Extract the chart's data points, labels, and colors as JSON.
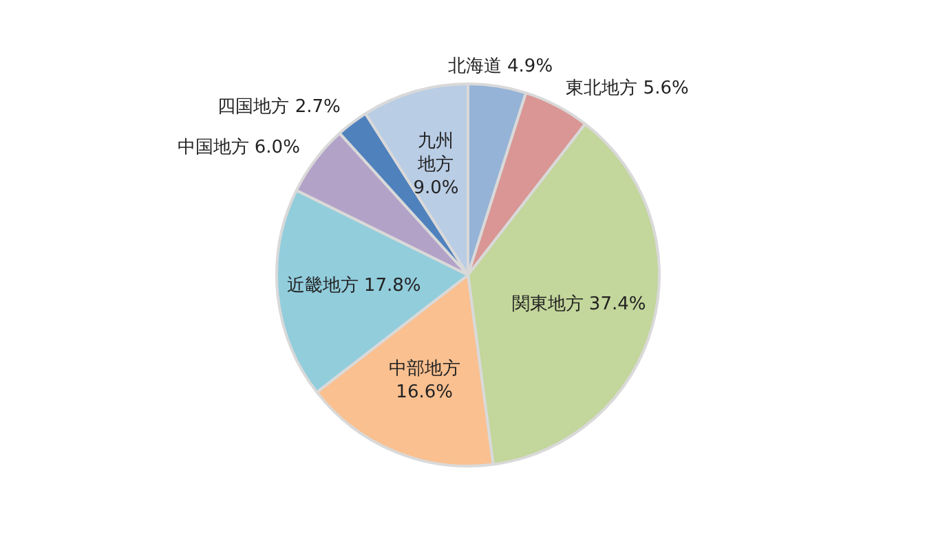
{
  "chart_data": {
    "type": "pie",
    "categories": [
      "北海道",
      "東北地方",
      "関東地方",
      "中部地方",
      "近畿地方",
      "中国地方",
      "四国地方",
      "九州地方"
    ],
    "values": [
      4.9,
      5.6,
      37.4,
      16.6,
      17.8,
      6.0,
      2.7,
      9.0
    ],
    "colors": [
      "#95b3d7",
      "#d99694",
      "#c3d69b",
      "#fac090",
      "#92cddc",
      "#b3a2c7",
      "#4f81bd",
      "#b9cde5"
    ],
    "value_labels": [
      "4.9%",
      "5.6%",
      "37.4%",
      "16.6%",
      "17.8%",
      "6.0%",
      "2.7%",
      "9.0%"
    ],
    "legend": false
  }
}
